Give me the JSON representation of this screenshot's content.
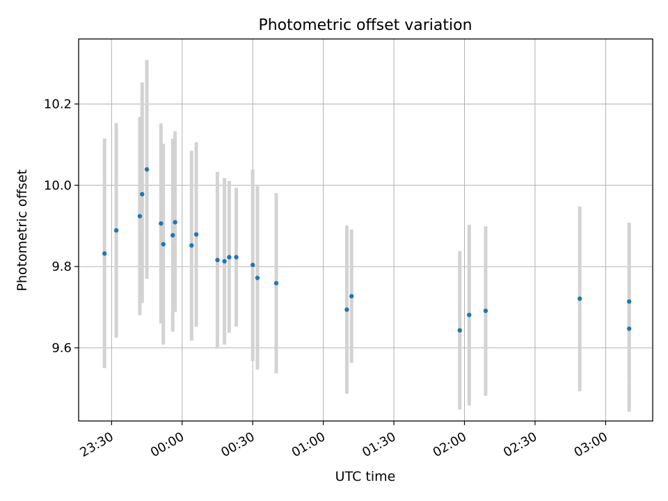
{
  "chart_data": {
    "type": "scatter",
    "title": "Photometric offset variation",
    "xlabel": "UTC time",
    "ylabel": "Photometric offset",
    "x_unit": "UTC time (HH:MM); times after midnight belong to the following day",
    "xlim": [
      "23:16",
      "03:20"
    ],
    "ylim": [
      9.42,
      10.36
    ],
    "grid": true,
    "x_ticks": [
      "23:30",
      "00:00",
      "00:30",
      "01:00",
      "01:30",
      "02:00",
      "02:30",
      "03:00"
    ],
    "y_ticks": [
      "9.6",
      "9.8",
      "10.0",
      "10.2"
    ],
    "series": [
      {
        "marker_color": "#1f77b4",
        "errorbar_color": "#d3d3d3",
        "points": [
          {
            "x": "23:27",
            "y": 9.832,
            "y_low": 9.55,
            "y_high": 10.115
          },
          {
            "x": "23:32",
            "y": 9.889,
            "y_low": 9.625,
            "y_high": 10.153
          },
          {
            "x": "23:42",
            "y": 9.924,
            "y_low": 9.68,
            "y_high": 10.168
          },
          {
            "x": "23:43",
            "y": 9.978,
            "y_low": 9.71,
            "y_high": 10.253
          },
          {
            "x": "23:45",
            "y": 10.039,
            "y_low": 9.77,
            "y_high": 10.308
          },
          {
            "x": "23:51",
            "y": 9.906,
            "y_low": 9.66,
            "y_high": 10.152
          },
          {
            "x": "23:52",
            "y": 9.855,
            "y_low": 9.608,
            "y_high": 10.102
          },
          {
            "x": "23:56",
            "y": 9.877,
            "y_low": 9.64,
            "y_high": 10.115
          },
          {
            "x": "23:57",
            "y": 9.909,
            "y_low": 9.688,
            "y_high": 10.133
          },
          {
            "x": "00:04",
            "y": 9.852,
            "y_low": 9.618,
            "y_high": 10.085
          },
          {
            "x": "00:06",
            "y": 9.879,
            "y_low": 9.652,
            "y_high": 10.106
          },
          {
            "x": "00:15",
            "y": 9.816,
            "y_low": 9.598,
            "y_high": 10.033
          },
          {
            "x": "00:18",
            "y": 9.813,
            "y_low": 9.608,
            "y_high": 10.018
          },
          {
            "x": "00:20",
            "y": 9.823,
            "y_low": 9.637,
            "y_high": 10.011
          },
          {
            "x": "00:23",
            "y": 9.823,
            "y_low": 9.652,
            "y_high": 9.994
          },
          {
            "x": "00:30",
            "y": 9.804,
            "y_low": 9.567,
            "y_high": 10.039
          },
          {
            "x": "00:32",
            "y": 9.772,
            "y_low": 9.547,
            "y_high": 9.998
          },
          {
            "x": "00:40",
            "y": 9.759,
            "y_low": 9.537,
            "y_high": 9.981
          },
          {
            "x": "01:10",
            "y": 9.694,
            "y_low": 9.487,
            "y_high": 9.901
          },
          {
            "x": "01:12",
            "y": 9.727,
            "y_low": 9.563,
            "y_high": 9.891
          },
          {
            "x": "01:58",
            "y": 9.643,
            "y_low": 9.448,
            "y_high": 9.838
          },
          {
            "x": "02:02",
            "y": 9.681,
            "y_low": 9.458,
            "y_high": 9.903
          },
          {
            "x": "02:09",
            "y": 9.691,
            "y_low": 9.482,
            "y_high": 9.899
          },
          {
            "x": "02:49",
            "y": 9.721,
            "y_low": 9.493,
            "y_high": 9.948
          },
          {
            "x": "03:10",
            "y": 9.714,
            "y_low": 9.52,
            "y_high": 9.908
          },
          {
            "x": "03:10",
            "y": 9.647,
            "y_low": 9.443,
            "y_high": 9.848
          }
        ]
      }
    ]
  }
}
